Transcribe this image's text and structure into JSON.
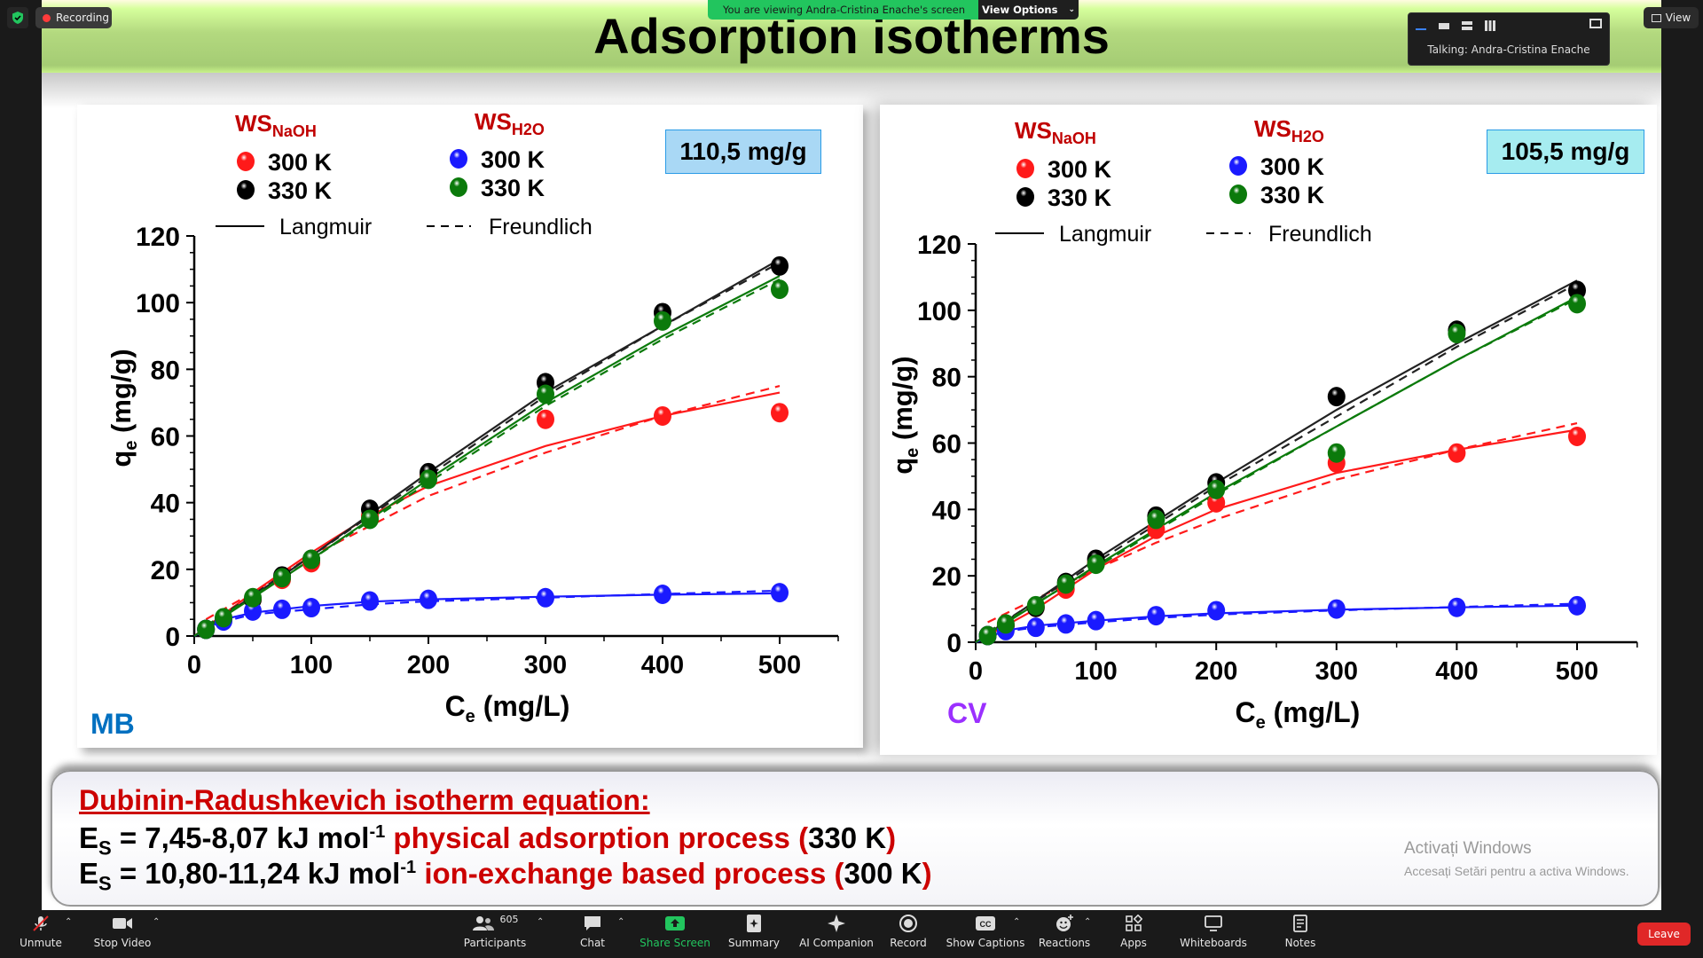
{
  "zoom": {
    "recording_label": "Recording",
    "viewing_banner": "You are viewing Andra-Cristina Enache's screen",
    "view_options_label": "View Options",
    "talking_label": "Talking: Andra-Cristina Enache",
    "view_label": "View",
    "toolbar": [
      {
        "label": "Unmute",
        "icon": "mic-muted-icon"
      },
      {
        "label": "Stop Video",
        "icon": "video-camera-icon"
      },
      {
        "label": "Participants",
        "icon": "participants-icon",
        "count": "605"
      },
      {
        "label": "Chat",
        "icon": "chat-icon"
      },
      {
        "label": "Share Screen",
        "icon": "share-screen-icon"
      },
      {
        "label": "Summary",
        "icon": "summary-icon"
      },
      {
        "label": "AI Companion",
        "icon": "ai-companion-icon"
      },
      {
        "label": "Record",
        "icon": "record-icon"
      },
      {
        "label": "Show Captions",
        "icon": "captions-icon"
      },
      {
        "label": "Reactions",
        "icon": "reactions-icon"
      },
      {
        "label": "Apps",
        "icon": "apps-icon"
      },
      {
        "label": "Whiteboards",
        "icon": "whiteboards-icon"
      },
      {
        "label": "Notes",
        "icon": "notes-icon"
      }
    ],
    "leave_label": "Leave",
    "colors": {
      "share_green": "#22c55e",
      "leave_red": "#e02828",
      "bar_bg": "#1a1a1a"
    }
  },
  "slide": {
    "title": "Adsorption isotherms",
    "equation_heading": "Dubinin-Radushkevich isotherm equation:",
    "eq1": {
      "lhs": "E",
      "sub": "S",
      "value": " = 7,45-8,07 kJ mol",
      "sup": "-1",
      "desc": " physical adsorption process ",
      "paren_open": "(",
      "temp": "330 K",
      "paren_close": ")"
    },
    "eq2": {
      "lhs": "E",
      "sub": "S",
      "value": " = 10,80-11,24 kJ mol",
      "sup": "-1",
      "desc": " ion-exchange based process ",
      "paren_open": "(",
      "temp": "300 K",
      "paren_close": ")"
    },
    "watermark_title": "Activați Windows",
    "watermark_sub": "Accesați Setări pentru a activa Windows."
  },
  "chart_data": [
    {
      "type": "scatter",
      "label": "MB",
      "label_color": "#0070c0",
      "capacity_label": "110,5 mg/g",
      "capacity_bg": "#a9d8f5",
      "xlabel_main": "C",
      "xlabel_sub": "e",
      "xlabel_rest": " (mg/L)",
      "ylabel_main": "q",
      "ylabel_sub": "e",
      "ylabel_rest": " (mg/g)",
      "xlim": [
        0,
        550
      ],
      "ylim": [
        0,
        120
      ],
      "xticks": [
        "0",
        "100",
        "200",
        "300",
        "400",
        "500"
      ],
      "yticks": [
        "0",
        "20",
        "40",
        "60",
        "80",
        "100",
        "120"
      ],
      "legend": {
        "group1": {
          "name": "WS",
          "sub": "NaOH"
        },
        "group2": {
          "name": "WS",
          "sub": "H2O"
        },
        "temp300": "300 K",
        "temp330": "330 K",
        "langmuir": "Langmuir",
        "freundlich": "Freundlich"
      },
      "series": [
        {
          "name": "WS NaOH 300 K",
          "color": "#ff1a1a",
          "x": [
            10,
            25,
            50,
            75,
            100,
            150,
            200,
            300,
            400,
            500
          ],
          "y": [
            2,
            5,
            11,
            17,
            22,
            36,
            48,
            65,
            66,
            67
          ],
          "langmuir": [
            [
              0,
              0
            ],
            [
              50,
              13
            ],
            [
              100,
              25
            ],
            [
              150,
              36
            ],
            [
              200,
              45
            ],
            [
              300,
              57
            ],
            [
              400,
              66
            ],
            [
              500,
              73
            ]
          ],
          "freundlich": [
            [
              10,
              5
            ],
            [
              50,
              13
            ],
            [
              100,
              24
            ],
            [
              150,
              33
            ],
            [
              200,
              42
            ],
            [
              300,
              55
            ],
            [
              400,
              66
            ],
            [
              500,
              75
            ]
          ]
        },
        {
          "name": "WS NaOH 330 K",
          "color": "#000000",
          "x": [
            10,
            25,
            50,
            75,
            100,
            150,
            200,
            300,
            400,
            500
          ],
          "y": [
            2,
            5,
            11,
            18,
            23,
            38,
            49,
            76,
            97,
            111
          ],
          "langmuir": [
            [
              0,
              0
            ],
            [
              100,
              24
            ],
            [
              200,
              49
            ],
            [
              300,
              73
            ],
            [
              400,
              93
            ],
            [
              500,
              113
            ]
          ],
          "freundlich": [
            [
              10,
              3
            ],
            [
              100,
              24
            ],
            [
              200,
              48
            ],
            [
              300,
              72
            ],
            [
              400,
              93
            ],
            [
              500,
              112
            ]
          ]
        },
        {
          "name": "WS H2O 300 K",
          "color": "#1a1aff",
          "x": [
            10,
            25,
            50,
            75,
            100,
            150,
            200,
            300,
            400,
            500
          ],
          "y": [
            2,
            4.5,
            7.5,
            8,
            8.5,
            10.5,
            11,
            11.5,
            12.5,
            13
          ],
          "langmuir": [
            [
              0,
              0
            ],
            [
              25,
              5
            ],
            [
              50,
              7
            ],
            [
              100,
              9
            ],
            [
              150,
              10.3
            ],
            [
              200,
              11
            ],
            [
              300,
              11.8
            ],
            [
              400,
              12.4
            ],
            [
              500,
              12.8
            ]
          ],
          "freundlich": [
            [
              10,
              3
            ],
            [
              50,
              6.5
            ],
            [
              100,
              8
            ],
            [
              150,
              9.5
            ],
            [
              200,
              10.4
            ],
            [
              300,
              11.5
            ],
            [
              400,
              12.6
            ],
            [
              500,
              13.6
            ]
          ]
        },
        {
          "name": "WS H2O 330 K",
          "color": "#0b7a0b",
          "x": [
            10,
            25,
            50,
            75,
            100,
            150,
            200,
            300,
            400,
            500
          ],
          "y": [
            2,
            5.5,
            11.5,
            17.5,
            23,
            35,
            47,
            72.5,
            94.5,
            104
          ],
          "langmuir": [
            [
              0,
              0
            ],
            [
              100,
              23
            ],
            [
              200,
              47
            ],
            [
              300,
              70
            ],
            [
              400,
              90
            ],
            [
              500,
              108
            ]
          ],
          "freundlich": [
            [
              10,
              3
            ],
            [
              100,
              23
            ],
            [
              200,
              46
            ],
            [
              300,
              69
            ],
            [
              400,
              89
            ],
            [
              500,
              107
            ]
          ]
        }
      ]
    },
    {
      "type": "scatter",
      "label": "CV",
      "label_color": "#9b30ff",
      "capacity_label": "105,5 mg/g",
      "capacity_bg": "#a6ecf0",
      "xlabel_main": "C",
      "xlabel_sub": "e",
      "xlabel_rest": " (mg/L)",
      "ylabel_main": "q",
      "ylabel_sub": "e",
      "ylabel_rest": " (mg/g)",
      "xlim": [
        0,
        550
      ],
      "ylim": [
        0,
        120
      ],
      "xticks": [
        "0",
        "100",
        "200",
        "300",
        "400",
        "500"
      ],
      "yticks": [
        "0",
        "20",
        "40",
        "60",
        "80",
        "100",
        "120"
      ],
      "legend": {
        "group1": {
          "name": "WS",
          "sub": "NaOH"
        },
        "group2": {
          "name": "WS",
          "sub": "H2O"
        },
        "temp300": "300 K",
        "temp330": "330 K",
        "langmuir": "Langmuir",
        "freundlich": "Freundlich"
      },
      "series": [
        {
          "name": "WS NaOH 300 K",
          "color": "#ff1a1a",
          "x": [
            10,
            25,
            50,
            75,
            100,
            150,
            200,
            300,
            400,
            500
          ],
          "y": [
            2,
            5,
            10.5,
            16,
            24,
            34,
            42,
            54,
            57,
            62
          ],
          "langmuir": [
            [
              0,
              0
            ],
            [
              50,
              10
            ],
            [
              100,
              22
            ],
            [
              150,
              32
            ],
            [
              200,
              40
            ],
            [
              300,
              51
            ],
            [
              400,
              58
            ],
            [
              500,
              64
            ]
          ],
          "freundlich": [
            [
              10,
              6
            ],
            [
              50,
              13
            ],
            [
              100,
              22
            ],
            [
              150,
              30
            ],
            [
              200,
              37
            ],
            [
              300,
              49
            ],
            [
              400,
              58
            ],
            [
              500,
              66
            ]
          ]
        },
        {
          "name": "WS NaOH 330 K",
          "color": "#000000",
          "x": [
            10,
            25,
            50,
            75,
            100,
            150,
            200,
            300,
            400,
            500
          ],
          "y": [
            2,
            5,
            10.5,
            18,
            25,
            38,
            48,
            74,
            94,
            106
          ],
          "langmuir": [
            [
              0,
              0
            ],
            [
              100,
              25
            ],
            [
              200,
              48
            ],
            [
              300,
              70
            ],
            [
              400,
              90
            ],
            [
              500,
              109
            ]
          ],
          "freundlich": [
            [
              10,
              3
            ],
            [
              100,
              24
            ],
            [
              200,
              47
            ],
            [
              300,
              68
            ],
            [
              400,
              89
            ],
            [
              500,
              108
            ]
          ]
        },
        {
          "name": "WS H2O 300 K",
          "color": "#1a1aff",
          "x": [
            10,
            25,
            50,
            75,
            100,
            150,
            200,
            300,
            400,
            500
          ],
          "y": [
            2,
            3.5,
            4.5,
            5.5,
            6.5,
            8,
            9.5,
            10,
            10.5,
            11
          ],
          "langmuir": [
            [
              0,
              0
            ],
            [
              25,
              3.5
            ],
            [
              50,
              5
            ],
            [
              100,
              6.5
            ],
            [
              150,
              7.8
            ],
            [
              200,
              8.7
            ],
            [
              300,
              9.8
            ],
            [
              400,
              10.5
            ],
            [
              500,
              11
            ]
          ],
          "freundlich": [
            [
              10,
              2.5
            ],
            [
              50,
              4.5
            ],
            [
              100,
              6
            ],
            [
              150,
              7.3
            ],
            [
              200,
              8.3
            ],
            [
              300,
              9.6
            ],
            [
              400,
              10.6
            ],
            [
              500,
              11.6
            ]
          ]
        },
        {
          "name": "WS H2O 330 K",
          "color": "#0b7a0b",
          "x": [
            10,
            25,
            50,
            75,
            100,
            150,
            200,
            300,
            400,
            500
          ],
          "y": [
            2,
            5.5,
            11,
            17.5,
            23.5,
            37,
            46,
            57,
            93,
            102
          ],
          "langmuir": [
            [
              0,
              0
            ],
            [
              100,
              23
            ],
            [
              200,
              45
            ],
            [
              300,
              65
            ],
            [
              400,
              85
            ],
            [
              500,
              104
            ]
          ],
          "freundlich": [
            [
              10,
              3
            ],
            [
              100,
              22.5
            ],
            [
              200,
              44.5
            ],
            [
              300,
              65
            ],
            [
              400,
              85
            ],
            [
              500,
              103.5
            ]
          ]
        }
      ]
    }
  ]
}
